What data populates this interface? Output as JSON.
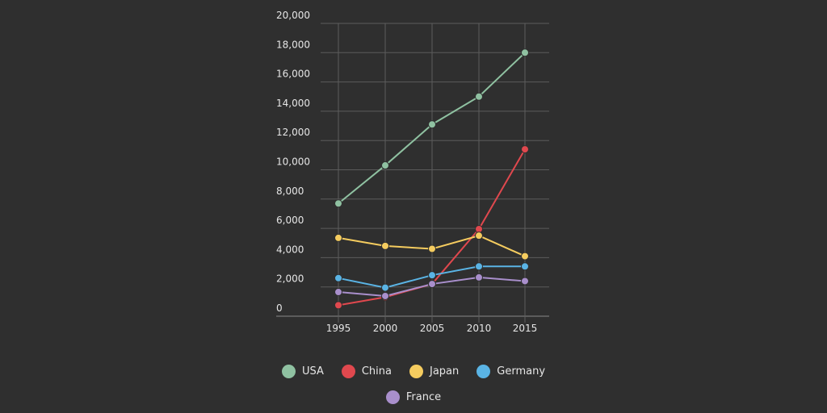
{
  "chart_data": {
    "type": "line",
    "title": "",
    "xlabel": "",
    "ylabel": "",
    "categories": [
      "1995",
      "2000",
      "2005",
      "2010",
      "2015"
    ],
    "ylim": [
      0,
      20000
    ],
    "yticks": [
      "0",
      "2,000",
      "4,000",
      "6,000",
      "8,000",
      "10,000",
      "12,000",
      "14,000",
      "16,000",
      "18,000",
      "20,000"
    ],
    "grid": true,
    "legend_position": "bottom",
    "series": [
      {
        "name": "USA",
        "color": "#8fc1a1",
        "values": [
          7700,
          10300,
          13100,
          15000,
          18000
        ]
      },
      {
        "name": "China",
        "color": "#e0484e",
        "values": [
          750,
          1300,
          2200,
          5950,
          11400
        ]
      },
      {
        "name": "Japan",
        "color": "#f5cc5f",
        "values": [
          5350,
          4800,
          4600,
          5500,
          4100
        ]
      },
      {
        "name": "Germany",
        "color": "#5ab4e5",
        "values": [
          2600,
          1950,
          2800,
          3400,
          3400
        ]
      },
      {
        "name": "France",
        "color": "#a98fcc",
        "values": [
          1650,
          1380,
          2200,
          2650,
          2400
        ]
      }
    ]
  }
}
